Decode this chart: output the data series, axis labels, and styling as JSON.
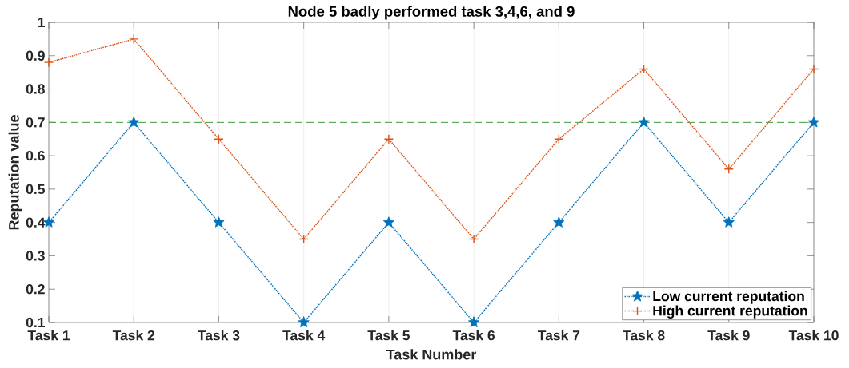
{
  "chart_data": {
    "type": "line",
    "title": "Node 5 badly performed task 3,4,6, and 9",
    "xlabel": "Task Number",
    "ylabel": "Reputation value",
    "categories": [
      "Task 1",
      "Task 2",
      "Task 3",
      "Task 4",
      "Task 5",
      "Task 6",
      "Task 7",
      "Task 8",
      "Task 9",
      "Task 10"
    ],
    "series": [
      {
        "name": "Low current reputation",
        "color": "#0072bd",
        "marker": "star",
        "values": [
          0.4,
          0.7,
          0.4,
          0.1,
          0.4,
          0.1,
          0.4,
          0.7,
          0.4,
          0.7
        ]
      },
      {
        "name": "High current reputation",
        "color": "#d95319",
        "marker": "cross",
        "values": [
          0.88,
          0.95,
          0.65,
          0.35,
          0.65,
          0.35,
          0.65,
          0.86,
          0.56,
          0.86
        ]
      }
    ],
    "ylim": [
      0.1,
      1
    ],
    "yticks": [
      0.1,
      0.2,
      0.3,
      0.4,
      0.5,
      0.6,
      0.7,
      0.8,
      0.9,
      1
    ],
    "grid": "x",
    "legend": "bottom right",
    "line_style": "dotted",
    "ref_lines": [
      {
        "axis": "y",
        "value": 0.7,
        "color": "#3c9b3c",
        "line_style": "dashed"
      }
    ]
  }
}
